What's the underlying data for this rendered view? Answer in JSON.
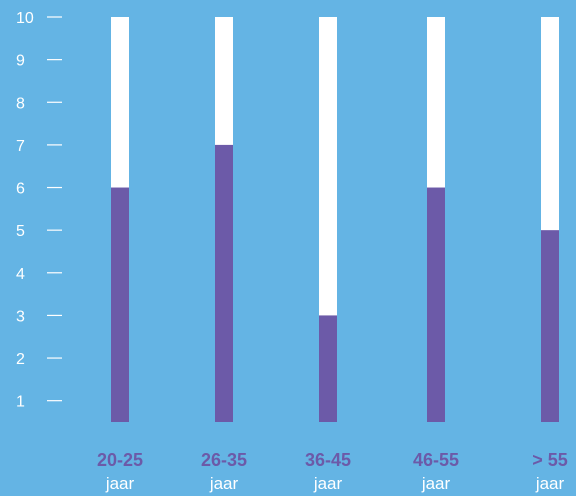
{
  "chart_data": {
    "type": "bar",
    "categories": [
      {
        "range": "20-25",
        "unit": "jaar"
      },
      {
        "range": "26-35",
        "unit": "jaar"
      },
      {
        "range": "36-45",
        "unit": "jaar"
      },
      {
        "range": "46-55",
        "unit": "jaar"
      },
      {
        "range": "> 55",
        "unit": "jaar"
      }
    ],
    "values": [
      6,
      7,
      3,
      6,
      5
    ],
    "ylim": [
      0.5,
      10
    ],
    "yticks": [
      "1",
      "2",
      "3",
      "4",
      "5",
      "6",
      "7",
      "8",
      "9",
      "10"
    ],
    "max_value": 10,
    "title": "",
    "xlabel": "",
    "ylabel": "",
    "grid": false,
    "colors": {
      "background": "#64b4e4",
      "bar_fill": "#6c5aa8",
      "bar_track": "#ffffff",
      "tick_text": "#ffffff",
      "category_label": "#6c5aa8",
      "unit_label": "#ffffff"
    }
  }
}
